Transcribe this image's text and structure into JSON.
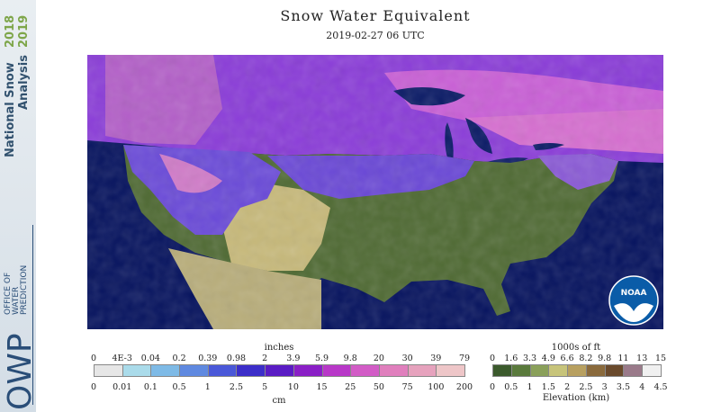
{
  "title": "Snow Water Equivalent",
  "datetime": "2019-02-27 06 UTC",
  "sidebar": {
    "line1": "National Snow",
    "line2": "Analysis",
    "year1": "2018",
    "year2": "2019",
    "owp": "OWP",
    "owp_line1": "OFFICE OF",
    "owp_line2": "WATER",
    "owp_line3": "PREDICTION"
  },
  "logo": {
    "text": "NOAA"
  },
  "swe_legend": {
    "unit_top": "inches",
    "unit_bottom": "cm",
    "inch_labels": [
      "0",
      "4E-3",
      "0.04",
      "0.2",
      "0.39",
      "0.98",
      "2",
      "3.9",
      "5.9",
      "9.8",
      "20",
      "30",
      "39",
      "79"
    ],
    "cm_labels": [
      "0",
      "0.01",
      "0.1",
      "0.5",
      "1",
      "2.5",
      "5",
      "10",
      "15",
      "25",
      "50",
      "75",
      "100",
      "200"
    ],
    "colors": [
      "#e6e6e6",
      "#aadbea",
      "#7ebae6",
      "#5f89e0",
      "#4a58d8",
      "#3c2ec9",
      "#5a1cc4",
      "#8a1fc6",
      "#b838c8",
      "#d25cc6",
      "#e07fbd",
      "#e6a2bd",
      "#eec6c8"
    ]
  },
  "elevation_legend": {
    "unit_top": "1000s of ft",
    "unit_bottom": "Elevation (km)",
    "ft_labels": [
      "0",
      "1.6",
      "3.3",
      "4.9",
      "6.6",
      "8.2",
      "9.8",
      "11",
      "13",
      "15"
    ],
    "km_labels": [
      "0",
      "0.5",
      "1",
      "1.5",
      "2",
      "2.5",
      "3",
      "3.5",
      "4",
      "4.5"
    ],
    "colors": [
      "#3b5a2c",
      "#5a7a3c",
      "#8aa05a",
      "#c7c47a",
      "#b8a060",
      "#8a6a3c",
      "#6a4a2c",
      "#9a7a8a",
      "#f0f0f0"
    ]
  }
}
